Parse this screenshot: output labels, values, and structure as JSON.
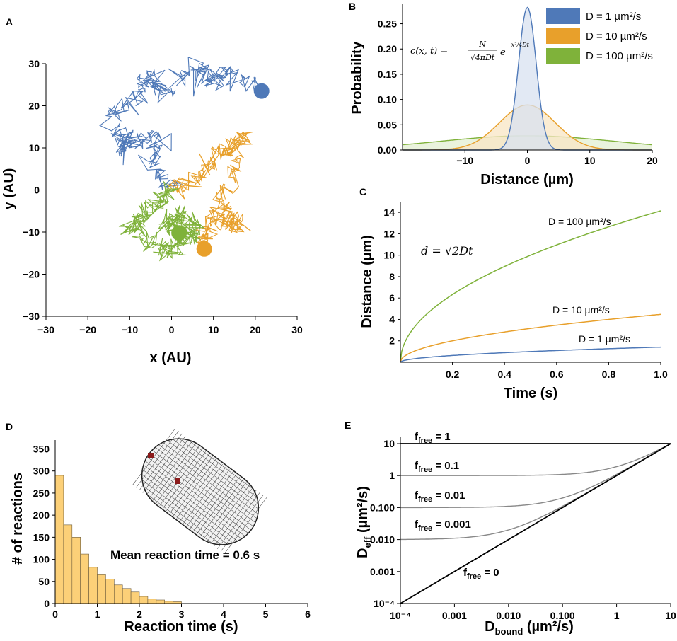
{
  "chart_data": [
    {
      "panel": "A",
      "type": "scatter",
      "xlabel": "x (AU)",
      "ylabel": "y (AU)",
      "xlim": [
        -30,
        30
      ],
      "ylim": [
        -30,
        30
      ],
      "xticks": [
        "−30",
        "−20",
        "−10",
        "0",
        "10",
        "20",
        "30"
      ],
      "yticks": [
        "30",
        "20",
        "10",
        "0",
        "−10",
        "−20",
        "−30"
      ],
      "series": [
        {
          "name": "blue walk",
          "color": "#4f79b8",
          "start": [
            0,
            0
          ],
          "end": [
            21.5,
            23.5
          ]
        },
        {
          "name": "orange walk",
          "color": "#e8a02b",
          "start": [
            0,
            0
          ],
          "end": [
            7.8,
            -14
          ]
        },
        {
          "name": "green walk",
          "color": "#7fb23a",
          "start": [
            0,
            0
          ],
          "end": [
            1.8,
            -10.2
          ]
        }
      ]
    },
    {
      "panel": "B",
      "type": "area",
      "xlabel": "Distance (µm)",
      "ylabel": "Probability",
      "xlim": [
        -20,
        20
      ],
      "ylim": [
        0,
        0.29
      ],
      "xticks": [
        "−10",
        "0",
        "10",
        "20"
      ],
      "yticks": [
        "0.00",
        "0.05",
        "0.10",
        "0.15",
        "0.20",
        "0.25"
      ],
      "formula": {
        "lhs": "c(x, t) =",
        "num": "N",
        "den": "√4πDt",
        "base": "e",
        "exp": "−x²/4Dt"
      },
      "series": [
        {
          "name": "D = 1 µm²/s",
          "D": 1,
          "color": "#4f79b8",
          "fill": "#d8e1f0"
        },
        {
          "name": "D = 10 µm²/s",
          "D": 10,
          "color": "#e8a02b",
          "fill": "#f8e6c4"
        },
        {
          "name": "D = 100 µm²/s",
          "D": 100,
          "color": "#7fb23a",
          "fill": "#e3efd2"
        }
      ]
    },
    {
      "panel": "C",
      "type": "line",
      "xlabel": "Time (s)",
      "ylabel": "Distance (µm)",
      "xlim": [
        0,
        1.0
      ],
      "ylim": [
        0,
        15
      ],
      "xticks": [
        "0.2",
        "0.4",
        "0.6",
        "0.8",
        "1.0"
      ],
      "yticks": [
        "2",
        "4",
        "6",
        "8",
        "10",
        "12",
        "14"
      ],
      "formula": {
        "lhs": "d =",
        "rhs": "√2Dt"
      },
      "series": [
        {
          "name": "D = 100 µm²/s",
          "D": 100,
          "color": "#7fb23a"
        },
        {
          "name": "D = 10 µm²/s",
          "D": 10,
          "color": "#e8a02b"
        },
        {
          "name": "D = 1 µm²/s",
          "D": 1,
          "color": "#4f79b8"
        }
      ]
    },
    {
      "panel": "D",
      "type": "bar",
      "xlabel": "Reaction time (s)",
      "ylabel": "# of reactions",
      "xlim": [
        0,
        6
      ],
      "ylim": [
        0,
        370
      ],
      "xticks": [
        "0",
        "1",
        "2",
        "3",
        "4",
        "5",
        "6"
      ],
      "yticks": [
        "0",
        "50",
        "100",
        "150",
        "200",
        "250",
        "300",
        "350"
      ],
      "bin_width": 0.2,
      "values": [
        290,
        178,
        150,
        112,
        82,
        65,
        55,
        42,
        34,
        26,
        16,
        10,
        8,
        5,
        4
      ],
      "annotation": "Mean reaction time = 0.6 s",
      "color": "#fcd078"
    },
    {
      "panel": "E",
      "type": "line",
      "xlabel": "Dbound (µm²/s)",
      "ylabel": "Deff (µm²/s)",
      "xscale": "log",
      "yscale": "log",
      "xlim": [
        0.0001,
        10
      ],
      "ylim": [
        0.0001,
        10
      ],
      "xticks": [
        "10⁻⁴",
        "0.001",
        "0.010",
        "0.100",
        "1",
        "10"
      ],
      "yticks": [
        "10",
        "1",
        "0.100",
        "0.010",
        "0.001",
        "10⁻⁴"
      ],
      "D_free": 10,
      "series": [
        {
          "name": "f_free = 1",
          "f": 1
        },
        {
          "name": "f_free = 0.1",
          "f": 0.1
        },
        {
          "name": "f_free = 0.01",
          "f": 0.01
        },
        {
          "name": "f_free = 0.001",
          "f": 0.001
        },
        {
          "name": "f_free = 0",
          "f": 0
        }
      ]
    }
  ],
  "labels": {
    "a": {
      "letter": "A",
      "xlabel": "x (AU)",
      "ylabel": "y (AU)",
      "xticks": [
        "−30",
        "−20",
        "−10",
        "0",
        "10",
        "20",
        "30"
      ],
      "yticks": [
        "30",
        "20",
        "10",
        "0",
        "−10",
        "−20",
        "−30"
      ]
    },
    "b": {
      "letter": "B",
      "xlabel": "Distance (µm)",
      "ylabel": "Probability",
      "xticks": [
        "−10",
        "0",
        "10",
        "20"
      ],
      "yticks": [
        "0.00",
        "0.05",
        "0.10",
        "0.15",
        "0.20",
        "0.25"
      ],
      "legend": [
        "D = 1 µm²/s",
        "D = 10 µm²/s",
        "D = 100 µm²/s"
      ],
      "formula_lhs": "c(x, t) =",
      "formula_num": "N",
      "formula_den": "√4πDt",
      "formula_base": "e",
      "formula_exp": "−x²/4Dt"
    },
    "c": {
      "letter": "C",
      "xlabel": "Time (s)",
      "ylabel": "Distance (µm)",
      "xticks": [
        "0.2",
        "0.4",
        "0.6",
        "0.8",
        "1.0"
      ],
      "yticks": [
        "2",
        "4",
        "6",
        "8",
        "10",
        "12",
        "14"
      ],
      "curve_labels": [
        "D = 100 µm²/s",
        "D = 10 µm²/s",
        "D = 1 µm²/s"
      ],
      "formula": "d = √2Dt"
    },
    "d": {
      "letter": "D",
      "xlabel": "Reaction time (s)",
      "ylabel": "# of reactions",
      "xticks": [
        "0",
        "1",
        "2",
        "3",
        "4",
        "5",
        "6"
      ],
      "yticks": [
        "0",
        "50",
        "100",
        "150",
        "200",
        "250",
        "300",
        "350"
      ],
      "annotation": "Mean reaction time = 0.6 s"
    },
    "e": {
      "letter": "E",
      "xlabel_main": "D",
      "xlabel_sub": "bound",
      "xlabel_unit": " (µm²/s)",
      "ylabel_main": "D",
      "ylabel_sub": "eff",
      "ylabel_unit": " (µm²/s)",
      "xticks": [
        "10⁻⁴",
        "0.001",
        "0.010",
        "0.100",
        "1",
        "10"
      ],
      "yticks": [
        "10",
        "1",
        "0.100",
        "0.010",
        "0.001",
        "10⁻⁴"
      ],
      "f_main": "f",
      "f_sub": "free",
      "f_values": [
        "= 1",
        "= 0.1",
        "= 0.01",
        "= 0.001",
        "= 0"
      ]
    }
  }
}
